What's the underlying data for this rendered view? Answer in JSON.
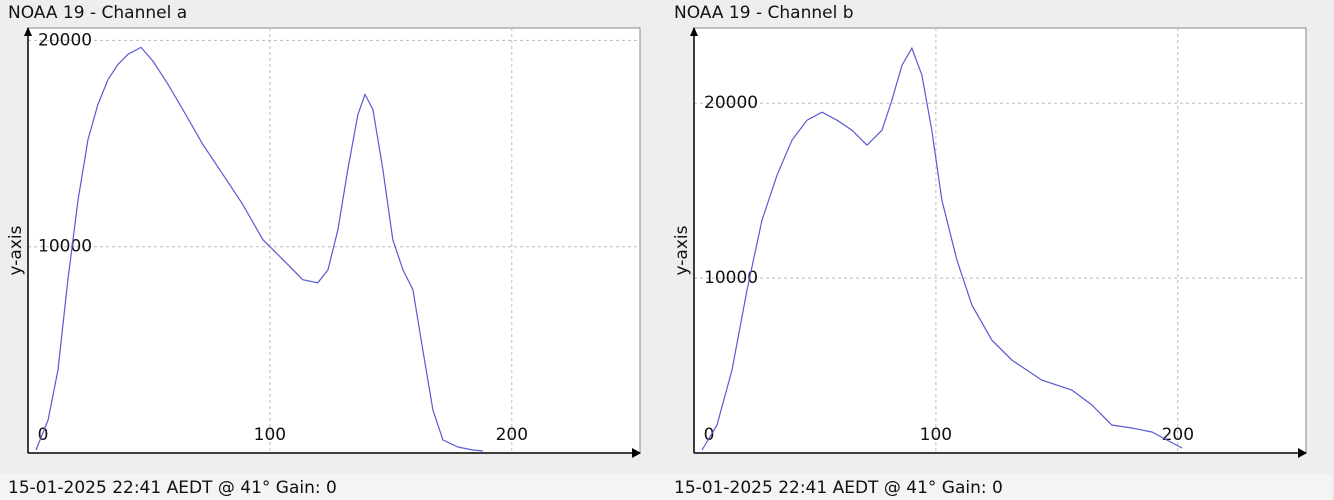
{
  "chart_data": [
    {
      "type": "line",
      "title": "NOAA 19 - Channel a",
      "y_label": "y-axis",
      "footer": "15-01-2025 22:41 AEDT @ 41° Gain: 0",
      "x": [
        3.3,
        8.3,
        12.4,
        16.5,
        20.7,
        24.8,
        28.9,
        33.1,
        37.2,
        41.3,
        46.7,
        51.7,
        57.9,
        64.0,
        72.3,
        80.6,
        88.8,
        97.1,
        105.4,
        113.6,
        119.8,
        124.0,
        128.1,
        132.2,
        136.4,
        139.3,
        142.6,
        146.7,
        150.8,
        155.0,
        159.1,
        163.2,
        167.4,
        171.5,
        177.7,
        183.9,
        188.0
      ],
      "series": [
        {
          "color": "#5a5ad2",
          "values": [
            146,
            1602,
            4029,
            8398,
            12282,
            15194,
            16893,
            18107,
            18835,
            19320,
            19660,
            18981,
            17864,
            16650,
            14951,
            13495,
            12039,
            10340,
            9369,
            8398,
            8252,
            8883,
            10825,
            13738,
            16408,
            17379,
            16650,
            13738,
            10340,
            8883,
            7913,
            5000,
            2087,
            631,
            291,
            146,
            97
          ]
        }
      ],
      "xlim": [
        0,
        253
      ],
      "ylim": [
        0,
        20600
      ],
      "xticks": [
        0,
        100,
        200
      ],
      "yticks": [
        10000,
        20000
      ],
      "grid": true
    },
    {
      "type": "line",
      "title": "NOAA 19 - Channel b",
      "y_label": "y-axis",
      "footer": "15-01-2025 22:41 AEDT @ 41° Gain: 0",
      "x": [
        3.3,
        9.5,
        15.7,
        21.9,
        28.1,
        34.3,
        40.5,
        46.7,
        52.9,
        59.1,
        65.3,
        71.5,
        77.7,
        81.8,
        86.0,
        90.1,
        94.2,
        98.3,
        102.5,
        108.7,
        114.9,
        123.1,
        131.4,
        143.8,
        156.2,
        164.5,
        172.7,
        181.0,
        189.3,
        195.5,
        201.7
      ],
      "series": [
        {
          "color": "#5a5ad2",
          "values": [
            171,
            1600,
            4743,
            9314,
            13314,
            15886,
            17886,
            19029,
            19486,
            19029,
            18457,
            17600,
            18457,
            20171,
            22171,
            23143,
            21600,
            18457,
            14457,
            11029,
            8457,
            6457,
            5314,
            4171,
            3600,
            2743,
            1600,
            1429,
            1200,
            743,
            286
          ]
        }
      ],
      "xlim": [
        0,
        253
      ],
      "ylim": [
        0,
        24300
      ],
      "xticks": [
        0,
        100,
        200
      ],
      "yticks": [
        10000,
        20000
      ],
      "grid": true
    }
  ]
}
